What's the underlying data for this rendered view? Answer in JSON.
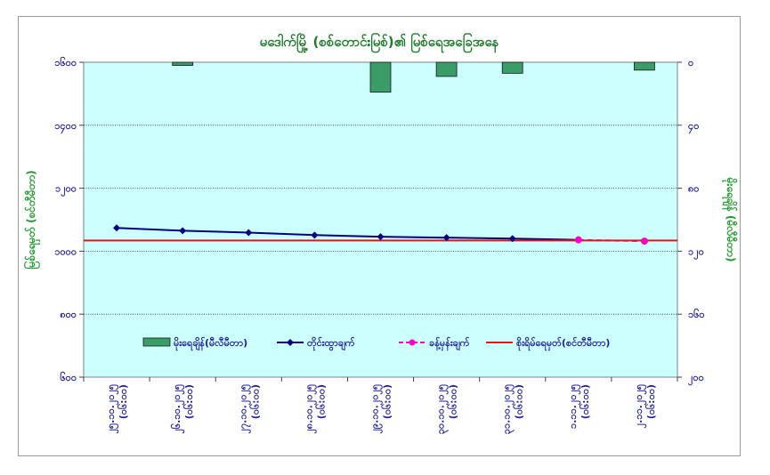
{
  "chart_data": {
    "type": "line",
    "title": "မဒေါက်မြို့ (စစ်တောင်းမြစ်)၏ မြစ်ရေအခြေအနေ",
    "ylabel_left": "မြစ်ရေမှတ် (စင်တီမီတာ)",
    "ylabel_right": "မိုးရေချိန် (မီလီမီတာ)",
    "left_axis": {
      "min": 600,
      "max": 1600,
      "ticks": [
        "၆၀၀",
        "၈၀၀",
        "၁၀၀၀",
        "၁၂၀၀",
        "၁၄၀၀",
        "၁၆၀၀"
      ]
    },
    "right_axis": {
      "min": 0,
      "max": 200,
      "reversed": true,
      "ticks": [
        "၀",
        "၄၀",
        "၈၀",
        "၁၂၀",
        "၁၆၀",
        "၂၀၀"
      ]
    },
    "categories": [
      {
        "date": "၂၅.၁၀.၂၀၂၅",
        "time": "(၀၆:၀၀)"
      },
      {
        "date": "၂၆.၁၀.၂၀၂၅",
        "time": "(၀၆:၀၀)"
      },
      {
        "date": "၂၇.၁၀.၂၀၂၅",
        "time": "(၀၆:၀၀)"
      },
      {
        "date": "၂၈.၁၀.၂၀၂၅",
        "time": "(၀၆:၀၀)"
      },
      {
        "date": "၂၉.၁၀.၂၀၂၅",
        "time": "(၀၆:၀၀)"
      },
      {
        "date": "၃၀.၁၀.၂၀၂၅",
        "time": "(၀၆:၀၀)"
      },
      {
        "date": "၃၁.၁၀.၂၀၂၅",
        "time": "(၀၆:၀၀)"
      },
      {
        "date": "၁.၁၁.၂၀၂၅",
        "time": "(၀၆:၀၀)"
      },
      {
        "date": "၂.၁၁.၂၀၂၅",
        "time": "(၀၆:၀၀)"
      }
    ],
    "series": [
      {
        "name": "မိုးရေချိန်(မီလီမီတာ)",
        "kind": "bar",
        "axis": "right",
        "color": "#3a9c66",
        "values": [
          0,
          2,
          0,
          0,
          19,
          9,
          7,
          0,
          5
        ]
      },
      {
        "name": "တိုင်းထွာချက်",
        "kind": "line",
        "axis": "left",
        "color": "#000080",
        "values": [
          1074,
          1065,
          1059,
          1051,
          1046,
          1043,
          1040,
          1036,
          null
        ]
      },
      {
        "name": "ခန့်မှန်းချက်",
        "kind": "line",
        "axis": "left",
        "color": "#ff00cc",
        "dashed": true,
        "values": [
          null,
          null,
          null,
          null,
          null,
          null,
          null,
          1036,
          1032
        ]
      },
      {
        "name": "စိုးရိမ်ရေမှတ်(စင်တီမီတာ)",
        "kind": "line",
        "axis": "left",
        "color": "#ee1111",
        "values": [
          1034,
          1034,
          1034,
          1034,
          1034,
          1034,
          1034,
          1034,
          1034
        ]
      }
    ],
    "plot_background": "#ccffff",
    "grid": true,
    "legend_position": "bottom-inside"
  }
}
